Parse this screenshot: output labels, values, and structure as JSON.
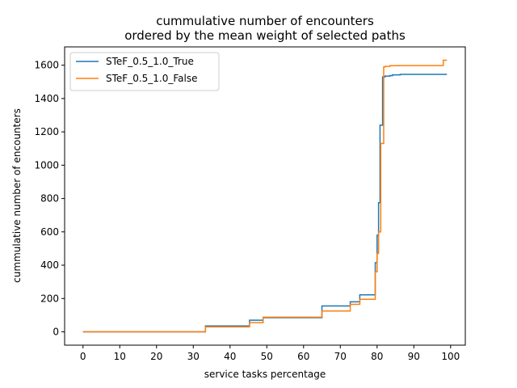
{
  "chart_data": {
    "type": "line",
    "title_line1": "cummulative number of encounters",
    "title_line2": "ordered by the mean weight of selected paths",
    "xlabel": "service tasks percentage",
    "ylabel": "cummulative number of encounters",
    "xlim": [
      -5,
      104
    ],
    "ylim": [
      -80,
      1710
    ],
    "xticks": [
      0,
      10,
      20,
      30,
      40,
      50,
      60,
      70,
      80,
      90,
      100
    ],
    "yticks": [
      0,
      200,
      400,
      600,
      800,
      1000,
      1200,
      1400,
      1600
    ],
    "grid": false,
    "legend": "top-left",
    "series": [
      {
        "name": "STeF_0.5_1.0_True",
        "color": "#1f77b4",
        "x": [
          0,
          33.3,
          33.3,
          45.3,
          45.3,
          49,
          49,
          65,
          65,
          72.7,
          72.7,
          75.3,
          75.3,
          79.5,
          79.5,
          80,
          80,
          80.4,
          80.4,
          80.8,
          80.8,
          81.5,
          81.5,
          82.2,
          82.2,
          83.5,
          83.5,
          84.2,
          84.2,
          86.3,
          86.3,
          98,
          98,
          99
        ],
        "y": [
          0,
          0,
          35,
          35,
          70,
          70,
          85,
          85,
          155,
          155,
          180,
          180,
          222,
          222,
          415,
          415,
          580,
          580,
          775,
          775,
          1240,
          1240,
          1530,
          1530,
          1535,
          1535,
          1538,
          1538,
          1542,
          1542,
          1545,
          1545,
          1545,
          1545
        ]
      },
      {
        "name": "STeF_0.5_1.0_False",
        "color": "#ff7f0e",
        "x": [
          0,
          33.3,
          33.3,
          45.3,
          45.3,
          49,
          49,
          65,
          65,
          72.7,
          72.7,
          75.3,
          75.3,
          79.5,
          79.5,
          80,
          80,
          80.4,
          80.4,
          81,
          81,
          81.8,
          81.8,
          82.2,
          82.2,
          83.5,
          83.5,
          86,
          86,
          98,
          98,
          99
        ],
        "y": [
          0,
          0,
          30,
          30,
          55,
          55,
          88,
          88,
          125,
          125,
          165,
          165,
          195,
          195,
          360,
          360,
          470,
          470,
          600,
          600,
          1130,
          1130,
          1590,
          1590,
          1593,
          1593,
          1597,
          1597,
          1598,
          1598,
          1630,
          1630
        ]
      }
    ]
  }
}
